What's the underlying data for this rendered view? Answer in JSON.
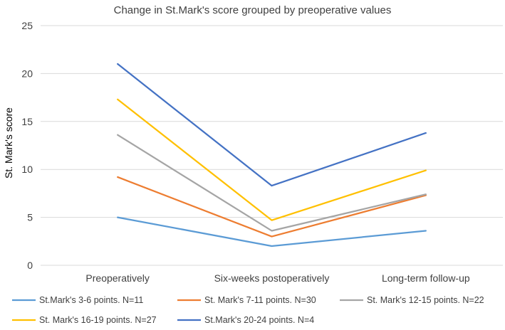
{
  "chart_data": {
    "type": "line",
    "title": "Change in St.Mark's score grouped by preoperative values",
    "xlabel": "",
    "ylabel": "St. Mark's score",
    "ylim": [
      0,
      25
    ],
    "yticks": [
      0,
      5,
      10,
      15,
      20,
      25
    ],
    "grid": true,
    "legend_position": "bottom",
    "categories": [
      "Preoperatively",
      "Six-weeks postoperatively",
      "Long-term follow-up"
    ],
    "series": [
      {
        "name": "St.Mark's 3-6 points. N=11",
        "color": "#5b9bd5",
        "values": [
          5.0,
          2.0,
          3.6
        ]
      },
      {
        "name": "St. Mark's 7-11 points. N=30",
        "color": "#ed7d31",
        "values": [
          9.2,
          3.0,
          7.3
        ]
      },
      {
        "name": "St. Mark's 12-15 points. N=22",
        "color": "#a5a5a5",
        "values": [
          13.6,
          3.6,
          7.4
        ]
      },
      {
        "name": "St. Mark's 16-19 points. N=27",
        "color": "#ffc000",
        "values": [
          17.3,
          4.7,
          9.9
        ]
      },
      {
        "name": "St.Mark's 20-24 points. N=4",
        "color": "#4472c4",
        "values": [
          21.0,
          8.3,
          13.8
        ]
      }
    ]
  }
}
